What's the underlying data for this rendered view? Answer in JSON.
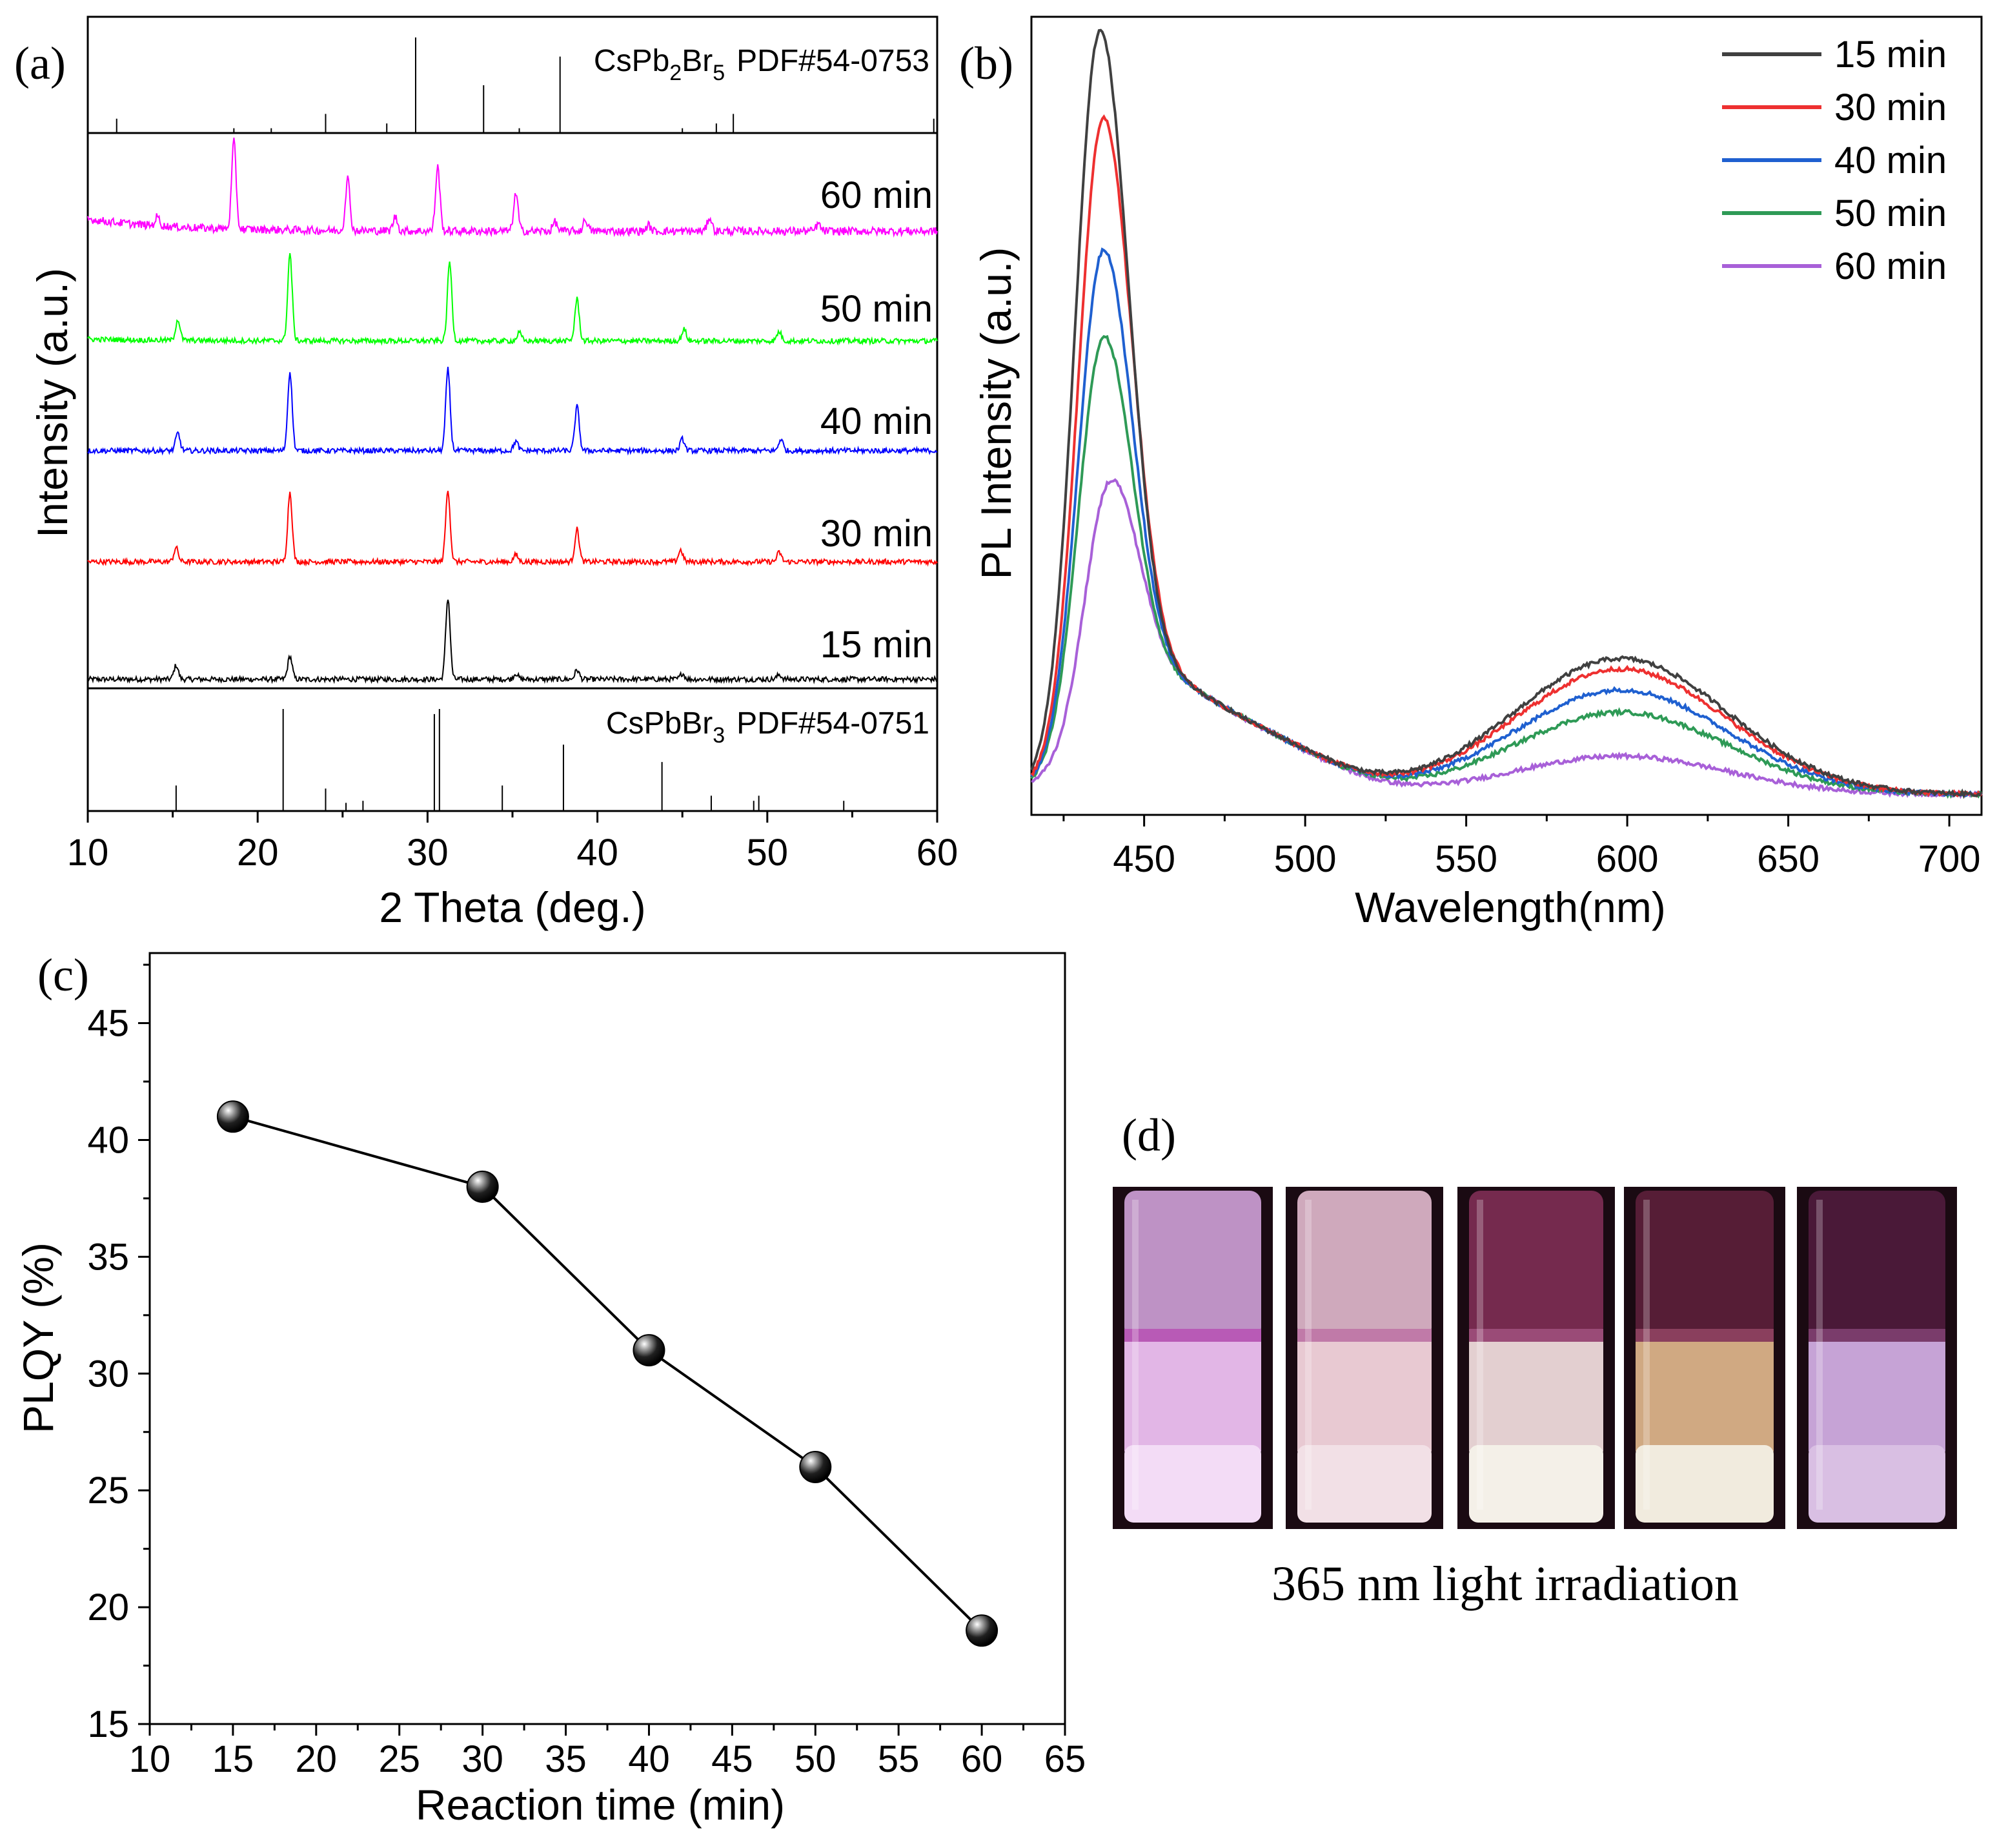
{
  "chart_data": [
    {
      "panel": "(a)",
      "type": "line",
      "xlabel": "2 Theta (deg.)",
      "ylabel": "Intensity (a.u.)",
      "xlim": [
        10,
        60
      ],
      "xticks": [
        "10",
        "20",
        "30",
        "40",
        "50",
        "60"
      ],
      "reference_top": {
        "label": "CsPb2Br5 PDF#54-0753",
        "formula": [
          "CsPb",
          "2",
          "Br",
          "5"
        ],
        "pdf": "PDF#54-0753",
        "sticks": [
          [
            11.7,
            0.15
          ],
          [
            18.6,
            0.05
          ],
          [
            20.8,
            0.05
          ],
          [
            24.0,
            0.2
          ],
          [
            27.6,
            0.1
          ],
          [
            29.3,
            1.0
          ],
          [
            33.3,
            0.5
          ],
          [
            35.4,
            0.05
          ],
          [
            37.8,
            0.8
          ],
          [
            45.0,
            0.05
          ],
          [
            47.0,
            0.1
          ],
          [
            48.0,
            0.2
          ],
          [
            59.8,
            0.15
          ]
        ]
      },
      "reference_bottom": {
        "label": "CsPbBr3 PDF#54-0751",
        "formula": [
          "CsPbBr",
          "3"
        ],
        "pdf": "PDF#54-0751",
        "sticks": [
          [
            15.2,
            0.25
          ],
          [
            21.5,
            1.0
          ],
          [
            24.0,
            0.22
          ],
          [
            25.2,
            0.08
          ],
          [
            26.2,
            0.1
          ],
          [
            30.4,
            0.95
          ],
          [
            30.7,
            1.0
          ],
          [
            34.4,
            0.25
          ],
          [
            38.0,
            0.65
          ],
          [
            43.8,
            0.48
          ],
          [
            46.7,
            0.15
          ],
          [
            49.2,
            0.1
          ],
          [
            49.5,
            0.15
          ],
          [
            54.5,
            0.1
          ]
        ]
      },
      "series": [
        {
          "name": "15 min",
          "label": "15 min",
          "color": "#000000",
          "peaks": [
            [
              15.2,
              0.12
            ],
            [
              21.9,
              0.2
            ],
            [
              31.2,
              0.7
            ],
            [
              35.2,
              0.05
            ],
            [
              38.8,
              0.08
            ],
            [
              45.0,
              0.05
            ],
            [
              50.7,
              0.04
            ]
          ],
          "bg_start": 0.0
        },
        {
          "name": "30 min",
          "label": "30 min",
          "color": "#ff0000",
          "peaks": [
            [
              15.2,
              0.12
            ],
            [
              21.9,
              0.6
            ],
            [
              31.2,
              0.62
            ],
            [
              35.2,
              0.06
            ],
            [
              38.8,
              0.28
            ],
            [
              44.9,
              0.1
            ],
            [
              50.7,
              0.08
            ]
          ],
          "bg_start": 0.0
        },
        {
          "name": "40 min",
          "label": "40 min",
          "color": "#0000ff",
          "peaks": [
            [
              15.3,
              0.15
            ],
            [
              21.9,
              0.68
            ],
            [
              31.2,
              0.7
            ],
            [
              35.2,
              0.08
            ],
            [
              38.8,
              0.38
            ],
            [
              45.0,
              0.1
            ],
            [
              50.8,
              0.1
            ]
          ],
          "bg_start": 0.0
        },
        {
          "name": "50 min",
          "label": "50 min",
          "color": "#00ff00",
          "peaks": [
            [
              15.3,
              0.18
            ],
            [
              21.9,
              0.75
            ],
            [
              31.3,
              0.68
            ],
            [
              35.4,
              0.07
            ],
            [
              38.8,
              0.36
            ],
            [
              45.1,
              0.1
            ],
            [
              50.7,
              0.08
            ]
          ],
          "bg_start": 0.05
        },
        {
          "name": "60 min",
          "label": "60 min",
          "color": "#ff00ff",
          "peaks": [
            [
              14.1,
              0.08
            ],
            [
              18.6,
              0.75
            ],
            [
              25.3,
              0.45
            ],
            [
              28.1,
              0.12
            ],
            [
              30.6,
              0.55
            ],
            [
              35.2,
              0.32
            ],
            [
              37.5,
              0.08
            ],
            [
              39.3,
              0.1
            ],
            [
              43.0,
              0.05
            ],
            [
              46.6,
              0.12
            ],
            [
              53.0,
              0.06
            ]
          ],
          "bg_start": 0.35
        }
      ]
    },
    {
      "panel": "(b)",
      "type": "line",
      "xlabel": "Wavelength(nm)",
      "ylabel": "PL Intensity (a.u.)",
      "xlim": [
        415,
        710
      ],
      "xticks": [
        "450",
        "500",
        "550",
        "600",
        "650",
        "700"
      ],
      "series": [
        {
          "name": "15 min",
          "color": "#404040",
          "peak1": 1.0,
          "peak2": 0.195,
          "p1_center": 436
        },
        {
          "name": "30 min",
          "color": "#ee3030",
          "peak1": 0.87,
          "peak2": 0.18,
          "p1_center": 437
        },
        {
          "name": "40 min",
          "color": "#1f60d0",
          "peak1": 0.68,
          "peak2": 0.15,
          "p1_center": 437
        },
        {
          "name": "50 min",
          "color": "#2e9a56",
          "peak1": 0.555,
          "peak2": 0.118,
          "p1_center": 437
        },
        {
          "name": "60 min",
          "color": "#a860d8",
          "peak1": 0.34,
          "peak2": 0.055,
          "p1_center": 439
        }
      ]
    },
    {
      "panel": "(c)",
      "type": "scatter",
      "xlabel": "Reaction time (min)",
      "ylabel": "PLQY (%)",
      "xlim": [
        10,
        65
      ],
      "ylim": [
        15,
        48
      ],
      "xticks": [
        "10",
        "15",
        "20",
        "25",
        "30",
        "35",
        "40",
        "45",
        "50",
        "55",
        "60",
        "65"
      ],
      "yticks": [
        "15",
        "20",
        "25",
        "30",
        "35",
        "40",
        "45"
      ],
      "x": [
        15,
        30,
        40,
        50,
        60
      ],
      "y": [
        41,
        38,
        31,
        26,
        19
      ]
    }
  ],
  "panels": {
    "a": "(a)",
    "b": "(b)",
    "c": "(c)",
    "d": "(d)"
  },
  "photo": {
    "caption": "365 nm light irradiation",
    "vials": [
      {
        "top": "#c79ad0",
        "liquid": "#e2b6e6",
        "glow": "#f3dcf6",
        "rim": "#b85ab6"
      },
      {
        "top": "#d9b2c6",
        "liquid": "#e8c9d2",
        "glow": "#f2e0e6",
        "rim": "#c07aa8"
      },
      {
        "top": "#7a2c52",
        "liquid": "#e3cfd0",
        "glow": "#f4f0e8",
        "rim": "#9a4b77"
      },
      {
        "top": "#5a1f39",
        "liquid": "#d0a982",
        "glow": "#f1ebde",
        "rim": "#8a3f5d"
      },
      {
        "top": "#4d1a3b",
        "liquid": "#c6a3d6",
        "glow": "#d9bfe3",
        "rim": "#7a3c6b"
      }
    ]
  }
}
